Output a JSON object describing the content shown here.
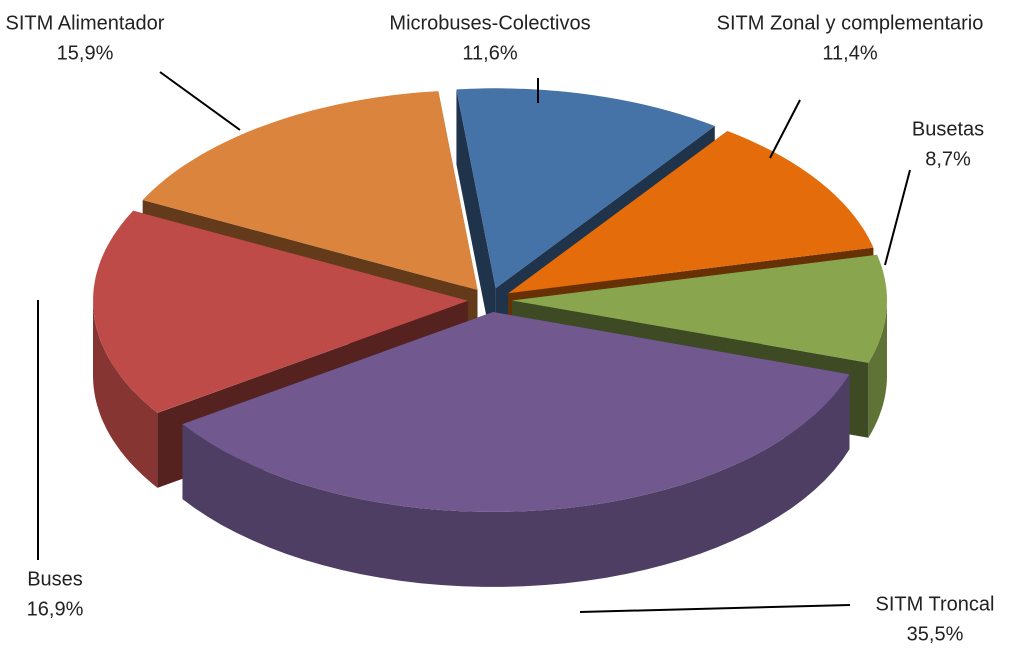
{
  "chart_data": {
    "type": "pie3d",
    "categories": [
      "Microbuses-Colectivos",
      "SITM Zonal y complementario",
      "Busetas",
      "SITM Troncal",
      "Buses",
      "SITM Alimentador"
    ],
    "values": [
      11.6,
      11.4,
      8.7,
      35.5,
      16.9,
      15.9
    ],
    "value_labels": [
      "11,6%",
      "11,4%",
      "8,7%",
      "35,5%",
      "16,9%",
      "15,9%"
    ],
    "colors": [
      "#4572a7",
      "#e46c0a",
      "#89a54e",
      "#71588f",
      "#bf4b48",
      "#db843d"
    ]
  }
}
